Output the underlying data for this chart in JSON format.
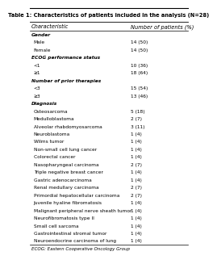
{
  "title": "Table 1: Characteristics of patients included in the analysis (N=28)",
  "col1_header": "Characteristic",
  "col2_header": "Number of patients (%)",
  "rows": [
    [
      "Gender",
      ""
    ],
    [
      "Male",
      "14 (50)"
    ],
    [
      "Female",
      "14 (50)"
    ],
    [
      "ECOG performance status",
      ""
    ],
    [
      "<1",
      "10 (36)"
    ],
    [
      "≥1",
      "18 (64)"
    ],
    [
      "Number of prior therapies",
      ""
    ],
    [
      "<3",
      "15 (54)"
    ],
    [
      "≥3",
      "13 (46)"
    ],
    [
      "Diagnosis",
      ""
    ],
    [
      "Osteosarcoma",
      "5 (18)"
    ],
    [
      "Medulloblastoma",
      "2 (7)"
    ],
    [
      "Alveolar rhabdomyosarcoma",
      "3 (11)"
    ],
    [
      "Neuroblastoma",
      "1 (4)"
    ],
    [
      "Wilms tumor",
      "1 (4)"
    ],
    [
      "Non-small cell lung cancer",
      "1 (4)"
    ],
    [
      "Colorectal cancer",
      "1 (4)"
    ],
    [
      "Nasopharyngeal carcinoma",
      "2 (7)"
    ],
    [
      "Triple negative breast cancer",
      "1 (4)"
    ],
    [
      "Gastric adenocarcinoma",
      "1 (4)"
    ],
    [
      "Renal medullary carcinoma",
      "2 (7)"
    ],
    [
      "Primordial hepatocellular carcinoma",
      "2 (7)"
    ],
    [
      "Juvenile hyaline fibromatosis",
      "1 (4)"
    ],
    [
      "Malignant peripheral nerve sheath tumor",
      "1 (4)"
    ],
    [
      "Neurofibromatosis type II",
      "1 (4)"
    ],
    [
      "Small cell sarcoma",
      "1 (4)"
    ],
    [
      "Gastrointestinal stromal tumor",
      "1 (4)"
    ],
    [
      "Neuroendocrine carcinoma of lung",
      "1 (4)"
    ]
  ],
  "footnote": "ECOG: Eastern Cooperative Oncology Group",
  "category_rows": [
    0,
    3,
    6,
    9
  ],
  "bg_color": "#ffffff",
  "title_fontsize": 4.8,
  "header_fontsize": 4.8,
  "data_fontsize": 4.2,
  "footnote_fontsize": 4.0,
  "col_split": 0.63
}
